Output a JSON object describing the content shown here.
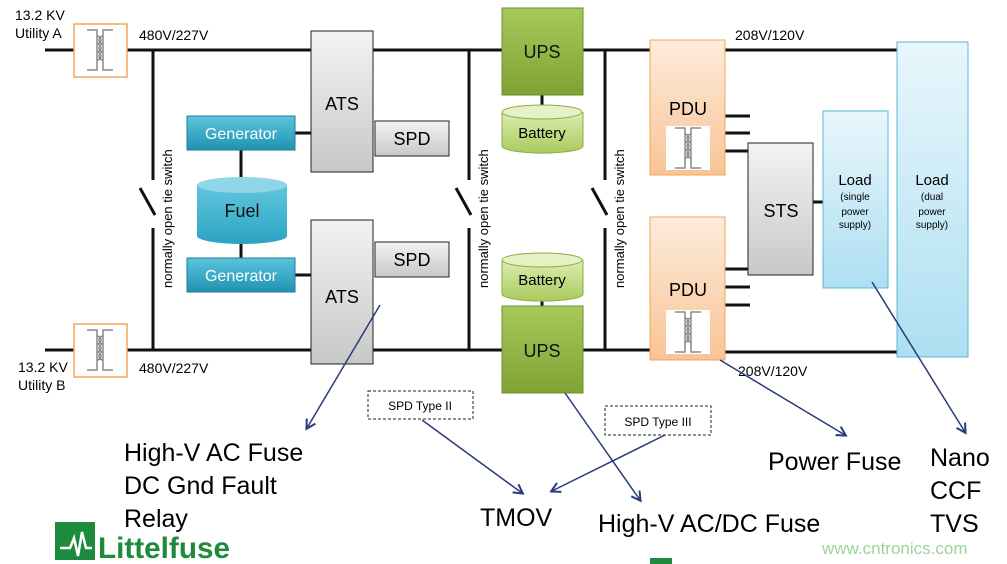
{
  "colors": {
    "bus": "#111111",
    "arrow": "#2a3a7a",
    "generator": "#2ba6c3",
    "ups": "#8fb342",
    "pdu": "#f7b985",
    "load": "#bfe6f4",
    "logo": "#1e8a3e",
    "watermark": "#9ed39a"
  },
  "utility_a": {
    "line1": "13.2 KV",
    "line2": "Utility A"
  },
  "utility_b": {
    "line1": "13.2 KV",
    "line2": "Utility B"
  },
  "voltage_top_left": "480V/227V",
  "voltage_bottom_left": "480V/227V",
  "voltage_top_right": "208V/120V",
  "voltage_bottom_right": "208V/120V",
  "tie_switch_label": "normally open tie switch",
  "generator_label": "Generator",
  "fuel_label": "Fuel",
  "ats_label": "ATS",
  "spd_label": "SPD",
  "ups_label": "UPS",
  "battery_label": "Battery",
  "pdu_label": "PDU",
  "sts_label": "STS",
  "load_single": {
    "title": "Load",
    "l1": "(single",
    "l2": "power",
    "l3": "supply)"
  },
  "load_dual": {
    "title": "Load",
    "l1": "(dual",
    "l2": "power",
    "l3": "supply)"
  },
  "spd_type2": "SPD Type II",
  "spd_type3": "SPD Type III",
  "callouts": {
    "ats": [
      "High-V AC Fuse",
      "DC Gnd Fault",
      "Relay"
    ],
    "tmov": "TMOV",
    "ups": "High-V AC/DC Fuse",
    "pdu": "Power Fuse",
    "load": [
      "Nano",
      "CCF",
      "TVS"
    ]
  },
  "logo_text": "Littelfuse",
  "watermark": "www.cntronics.com"
}
